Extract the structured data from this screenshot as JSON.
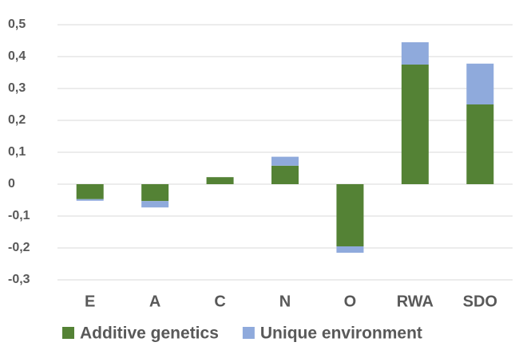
{
  "chart_data": {
    "type": "stacked_bar",
    "categories": [
      "E",
      "A",
      "C",
      "N",
      "O",
      "RWA",
      "SDO"
    ],
    "series": [
      {
        "name": "Additive genetics",
        "color": "#548235",
        "values": [
          -0.047,
          -0.053,
          0.022,
          0.058,
          -0.195,
          0.375,
          0.25
        ]
      },
      {
        "name": "Unique environment",
        "color": "#8faadc",
        "values": [
          -0.005,
          -0.02,
          0,
          0.028,
          -0.02,
          0.07,
          0.128
        ]
      }
    ],
    "ylim": [
      -0.3,
      0.5
    ],
    "yticks": [
      {
        "value": -0.3,
        "label": "-0,3"
      },
      {
        "value": -0.2,
        "label": "-0,2"
      },
      {
        "value": -0.1,
        "label": "-0,1"
      },
      0,
      {
        "value": 0.1,
        "label": "0,1"
      },
      {
        "value": 0.2,
        "label": "0,2"
      },
      {
        "value": 0.3,
        "label": "0,3"
      },
      {
        "value": 0.4,
        "label": "0,4"
      },
      {
        "value": 0.5,
        "label": "0,5"
      }
    ],
    "grid": true,
    "legend": "bottom"
  }
}
